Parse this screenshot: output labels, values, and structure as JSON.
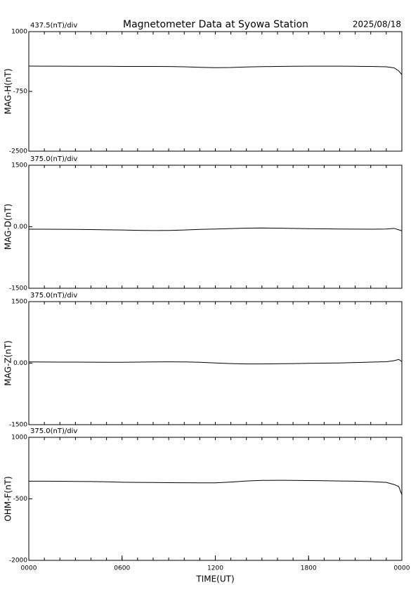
{
  "header": {
    "title": "Magnetometer Data at Syowa Station",
    "date": "2025/08/18"
  },
  "chart_data": [
    {
      "type": "line",
      "scale_label": "437.5(nT)/div",
      "ylabel": "MAG-H(nT)",
      "ylim": [
        -2500,
        1000
      ],
      "yticks": [
        1000,
        -750,
        -2500
      ],
      "xlim": [
        0,
        24
      ],
      "x": [
        0,
        1,
        2,
        3,
        4,
        5,
        6,
        7,
        8,
        9,
        10,
        11,
        12,
        13,
        14,
        15,
        16,
        17,
        18,
        19,
        20,
        21,
        22,
        23,
        23.5,
        23.8,
        24
      ],
      "series": [
        {
          "name": "MAG-H",
          "color": "#000000",
          "values": [
            -10,
            -12,
            -12,
            -15,
            -15,
            -15,
            -18,
            -20,
            -20,
            -22,
            -30,
            -45,
            -55,
            -50,
            -35,
            -25,
            -20,
            -15,
            -12,
            -12,
            -12,
            -15,
            -18,
            -30,
            -60,
            -150,
            -260
          ]
        }
      ]
    },
    {
      "type": "line",
      "scale_label": "375.0(nT)/div",
      "ylabel": "MAG-D(nT)",
      "ylim": [
        -1500,
        1500
      ],
      "yticks": [
        1500,
        {
          "value": 0,
          "label": "0.00"
        },
        -1500
      ],
      "xlim": [
        0,
        24
      ],
      "x": [
        0,
        1,
        2,
        3,
        4,
        5,
        6,
        7,
        8,
        9,
        10,
        11,
        12,
        13,
        14,
        15,
        16,
        17,
        18,
        19,
        20,
        21,
        22,
        23,
        23.5,
        23.8,
        24
      ],
      "series": [
        {
          "name": "MAG-D",
          "color": "#000000",
          "values": [
            -60,
            -60,
            -62,
            -65,
            -68,
            -75,
            -80,
            -88,
            -92,
            -90,
            -80,
            -65,
            -55,
            -45,
            -35,
            -30,
            -35,
            -40,
            -48,
            -52,
            -55,
            -58,
            -60,
            -55,
            -40,
            -75,
            -100
          ]
        }
      ]
    },
    {
      "type": "line",
      "scale_label": "375.0(nT)/div",
      "ylabel": "MAG-Z(nT)",
      "ylim": [
        -1500,
        1500
      ],
      "yticks": [
        1500,
        {
          "value": 0,
          "label": "0.00"
        },
        -1500
      ],
      "xlim": [
        0,
        24
      ],
      "x": [
        0,
        1,
        2,
        3,
        4,
        5,
        6,
        7,
        8,
        9,
        10,
        11,
        12,
        13,
        14,
        15,
        16,
        17,
        18,
        19,
        20,
        21,
        22,
        23,
        23.5,
        23.8,
        24
      ],
      "series": [
        {
          "name": "MAG-Z",
          "color": "#000000",
          "values": [
            30,
            28,
            26,
            25,
            24,
            22,
            22,
            25,
            30,
            32,
            30,
            22,
            5,
            -10,
            -20,
            -20,
            -15,
            -10,
            -5,
            0,
            5,
            15,
            25,
            35,
            60,
            90,
            40
          ]
        }
      ]
    },
    {
      "type": "line",
      "scale_label": "375.0(nT)/div",
      "ylabel": "OHM-F(nT)",
      "ylim": [
        -2000,
        1000
      ],
      "yticks": [
        1000,
        -500,
        -2000
      ],
      "xlim": [
        0,
        24
      ],
      "xticks": [
        {
          "value": 0,
          "label": "0000"
        },
        {
          "value": 6,
          "label": "0600"
        },
        {
          "value": 12,
          "label": "1200"
        },
        {
          "value": 18,
          "label": "1800"
        },
        {
          "value": 24,
          "label": "0000"
        }
      ],
      "xlabel": "TIME(UT)",
      "x": [
        0,
        1,
        2,
        3,
        4,
        5,
        6,
        7,
        8,
        9,
        10,
        11,
        12,
        13,
        14,
        15,
        16,
        17,
        18,
        19,
        20,
        21,
        22,
        23,
        23.5,
        23.8,
        24
      ],
      "series": [
        {
          "name": "OHM-F",
          "color": "#000000",
          "values": [
            -70,
            -70,
            -72,
            -75,
            -78,
            -85,
            -95,
            -100,
            -102,
            -105,
            -108,
            -110,
            -110,
            -90,
            -65,
            -50,
            -48,
            -50,
            -55,
            -58,
            -65,
            -70,
            -80,
            -100,
            -150,
            -200,
            -400
          ]
        }
      ]
    }
  ]
}
